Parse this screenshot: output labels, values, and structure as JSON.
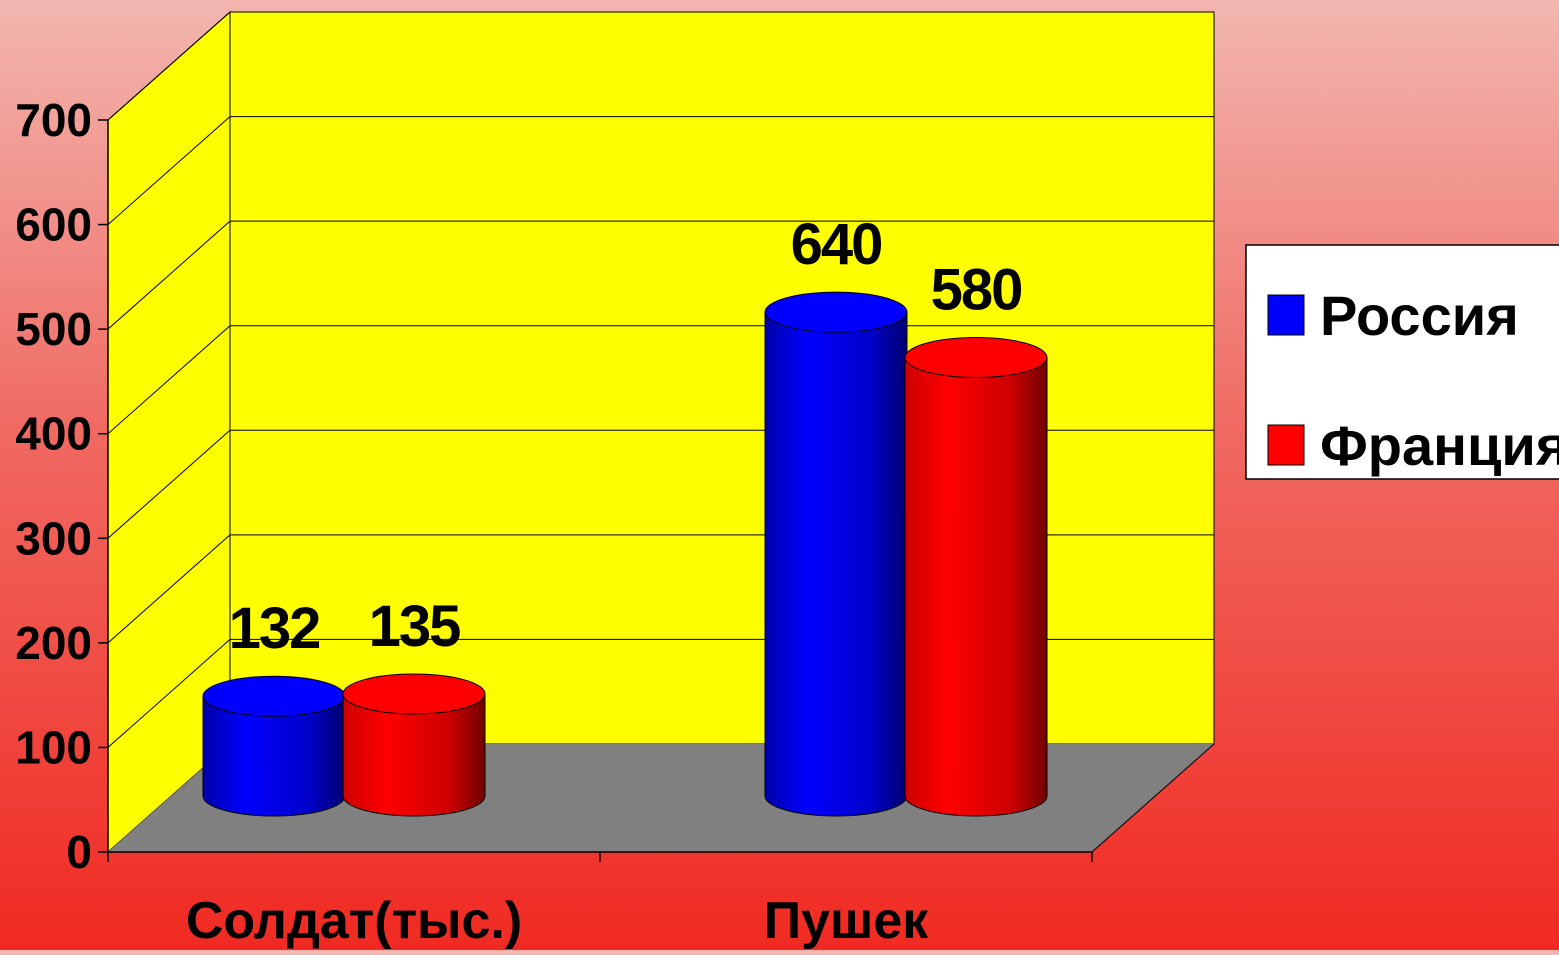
{
  "chart_data": {
    "type": "bar",
    "style": "3d-cylinder",
    "categories": [
      "Солдат(тыс.)",
      "Пушек"
    ],
    "series": [
      {
        "name": "Россия",
        "color": "#0000ff",
        "values": [
          132,
          640
        ],
        "labels": [
          "132",
          "640"
        ]
      },
      {
        "name": "Франция",
        "color": "#ff0000",
        "values": [
          135,
          580
        ],
        "labels": [
          "135",
          "580"
        ]
      }
    ],
    "y_ticks": [
      "0",
      "100",
      "200",
      "300",
      "400",
      "500",
      "600",
      "700"
    ],
    "ylim": [
      0,
      700
    ],
    "grid": true,
    "legend_position": "right",
    "wall_color": "#ffff00",
    "floor_color": "#808080"
  }
}
